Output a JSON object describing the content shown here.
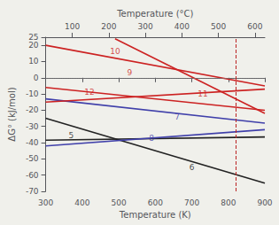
{
  "chart_data": {
    "type": "line",
    "xlabel": "Temperature (K)",
    "ylabel": "ΔG° (kJ/mol)",
    "x2label": "Temperature (°C)",
    "xlim": [
      300,
      900
    ],
    "xticks": [
      300,
      400,
      500,
      600,
      700,
      800,
      900
    ],
    "x2lim": [
      300,
      900
    ],
    "x2ticks": [
      {
        "value": 373,
        "label": "100"
      },
      {
        "value": 473,
        "label": "200"
      },
      {
        "value": 573,
        "label": "300"
      },
      {
        "value": 673,
        "label": "400"
      },
      {
        "value": 773,
        "label": "500"
      },
      {
        "value": 873,
        "label": "600"
      }
    ],
    "ylim": [
      -70,
      25
    ],
    "yticks": [
      -70,
      -60,
      -50,
      -40,
      -30,
      -20,
      -10,
      0,
      10,
      20
    ],
    "grid": false,
    "background": "#f0f0eb",
    "series": [
      {
        "color": "#222222",
        "x": [
          300,
          900
        ],
        "values": [
          -38.5,
          -36.5
        ]
      },
      {
        "color": "#222222",
        "x": [
          300,
          900
        ],
        "values": [
          -25,
          -65
        ]
      },
      {
        "color": "#4040aa",
        "x": [
          300,
          900
        ],
        "values": [
          -13,
          -28
        ]
      },
      {
        "color": "#4040aa",
        "x": [
          300,
          900
        ],
        "values": [
          -42,
          -32
        ]
      },
      {
        "color": "#cc2222",
        "x": [
          300,
          900
        ],
        "values": [
          20,
          -5
        ]
      },
      {
        "color": "#cc2222",
        "x": [
          490,
          900
        ],
        "values": [
          24,
          -22
        ]
      },
      {
        "color": "#cc2222",
        "x": [
          300,
          900
        ],
        "values": [
          -15,
          -7
        ]
      },
      {
        "color": "#cc2222",
        "x": [
          300,
          900
        ],
        "values": [
          -6,
          -20
        ]
      }
    ],
    "annotations": [
      {
        "text": "5",
        "x": 370,
        "y": -35.5,
        "color": "#222222"
      },
      {
        "text": "6",
        "x": 700,
        "y": -55,
        "color": "#222222"
      },
      {
        "text": "7",
        "x": 660,
        "y": -24,
        "color": "#4040aa"
      },
      {
        "text": "8",
        "x": 590,
        "y": -37,
        "color": "#4040aa"
      },
      {
        "text": "9",
        "x": 530,
        "y": 3,
        "color": "#cc2222"
      },
      {
        "text": "10",
        "x": 490,
        "y": 16,
        "color": "#cc2222"
      },
      {
        "text": "11",
        "x": 730,
        "y": -10,
        "color": "#cc2222"
      },
      {
        "text": "12",
        "x": 420,
        "y": -9,
        "color": "#cc2222"
      }
    ],
    "reference_lines": [
      {
        "axis": "y",
        "value": 0,
        "color": "gray",
        "line_style": "dotted"
      },
      {
        "axis": "x",
        "value": 820,
        "color": "#bb2222",
        "line_style": "dashed"
      }
    ]
  }
}
